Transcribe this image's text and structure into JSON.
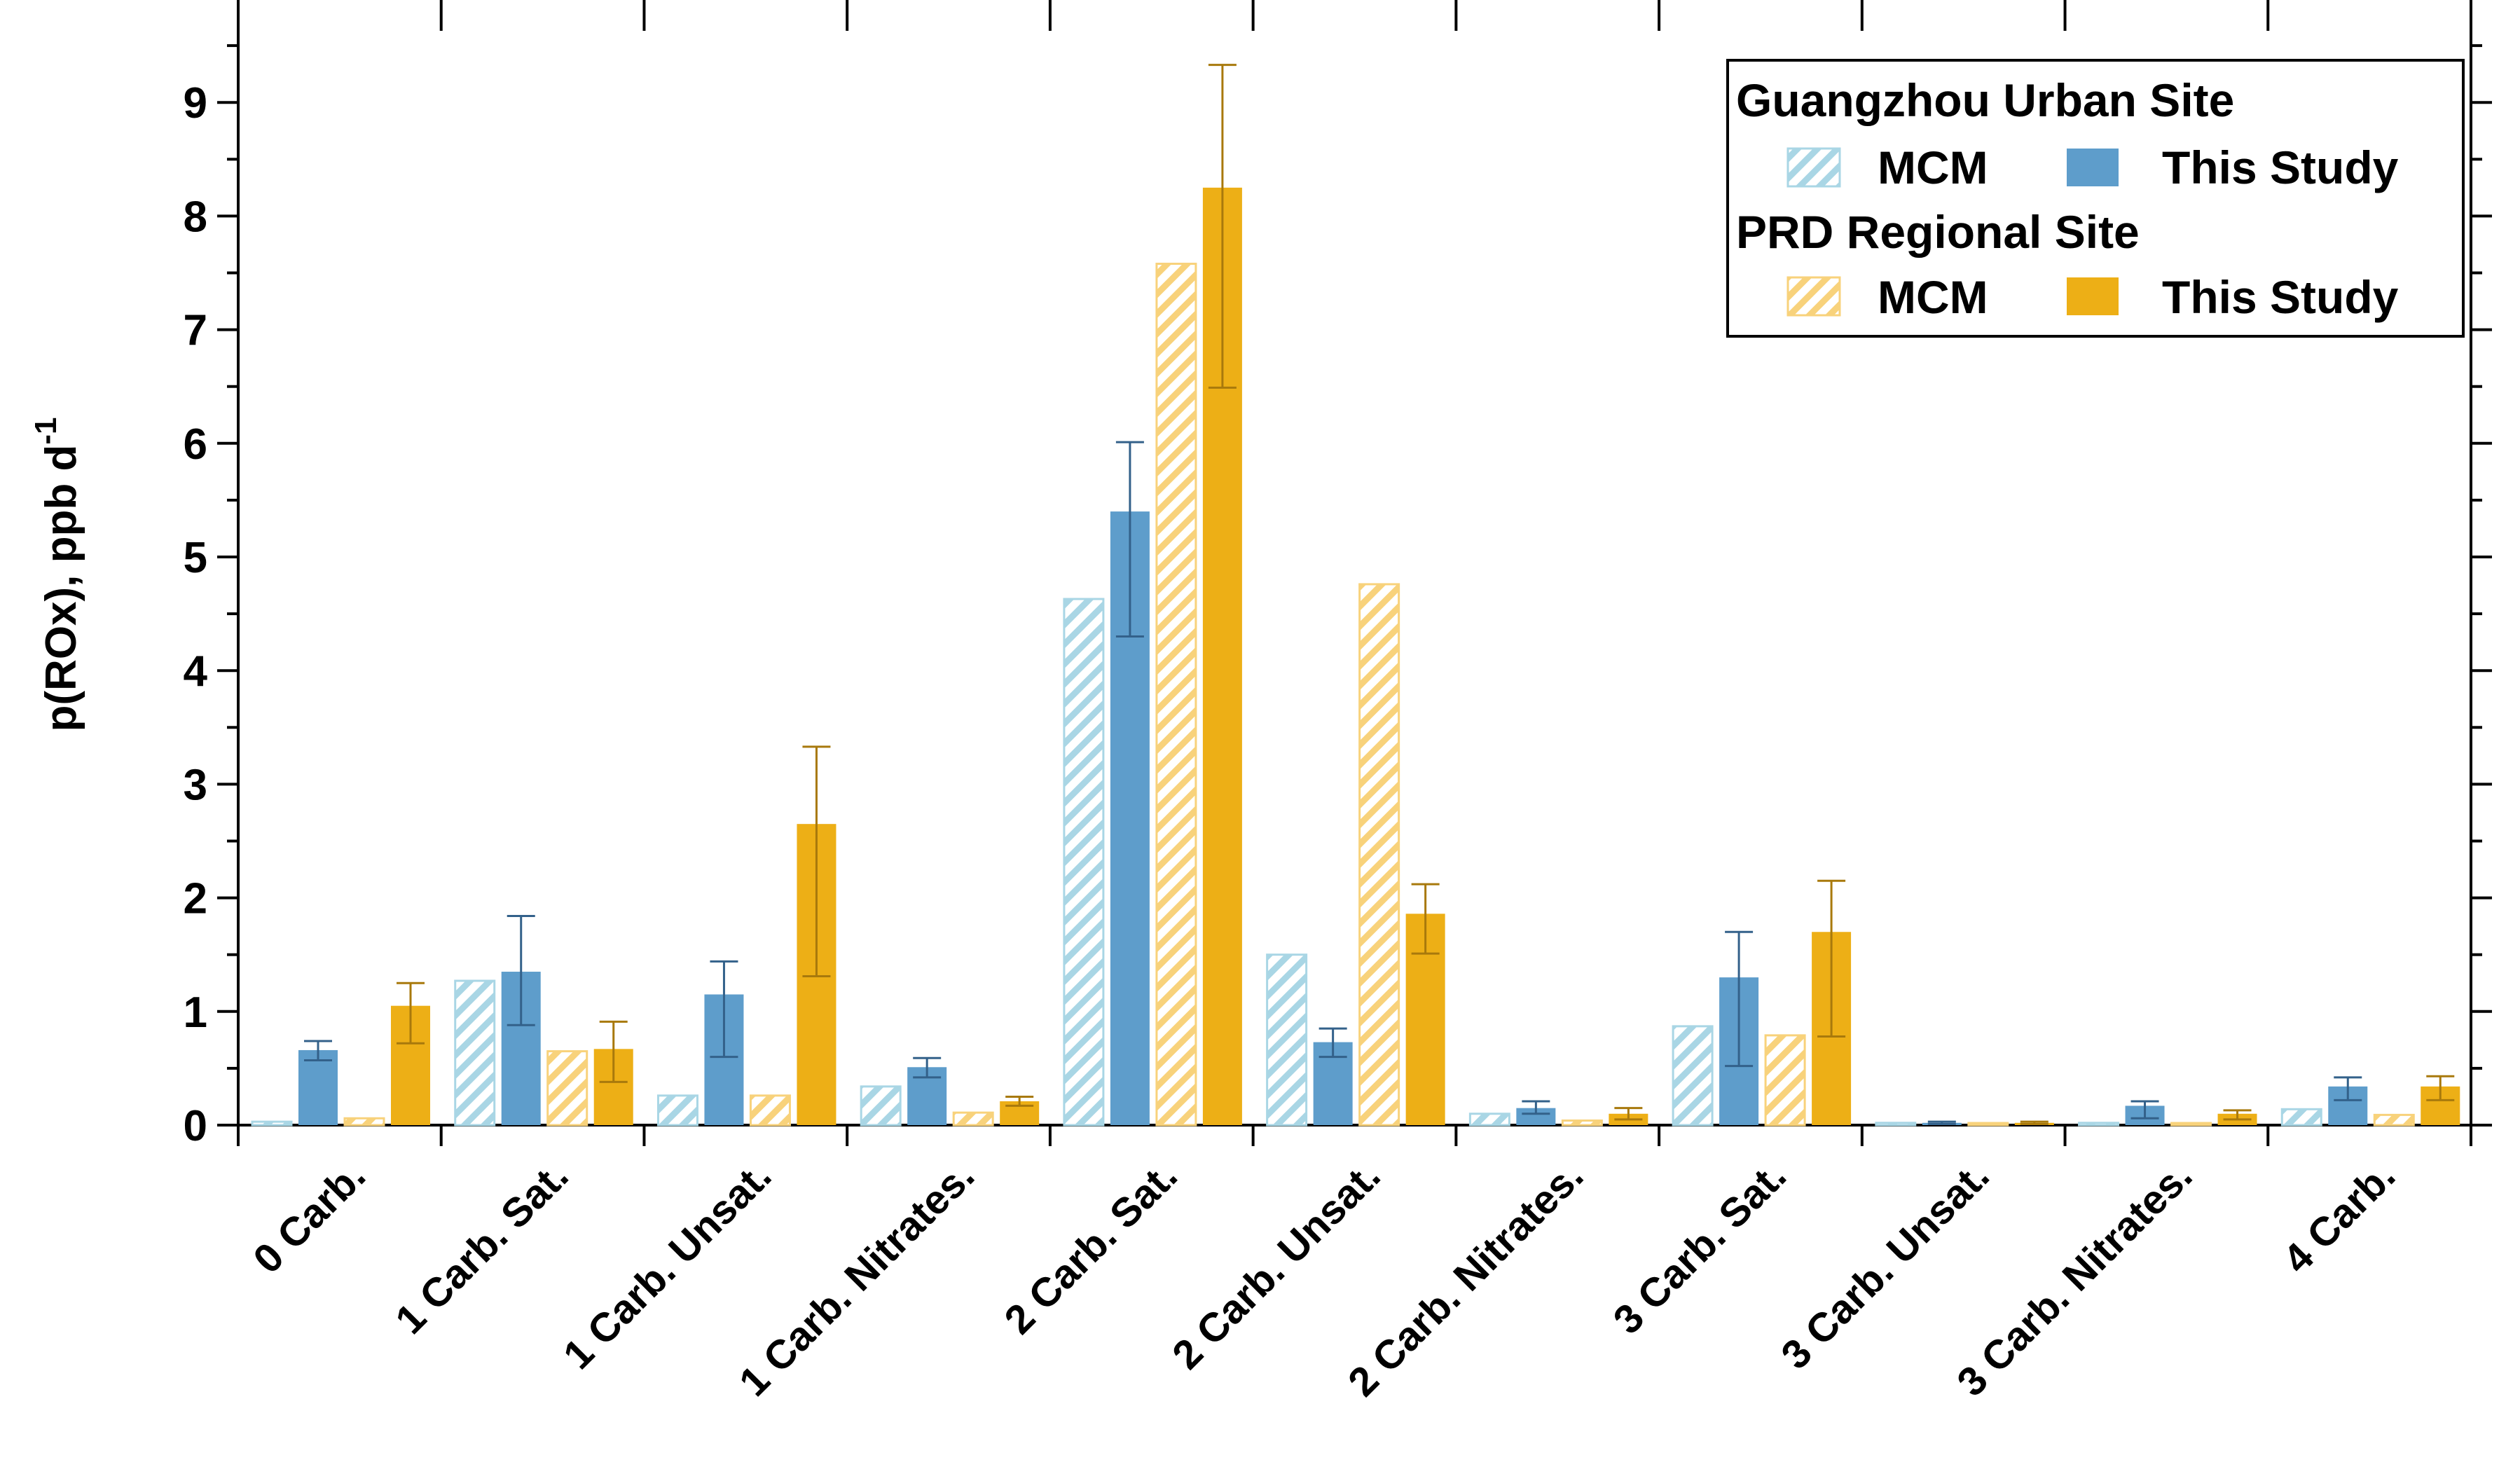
{
  "chart_data": {
    "type": "bar",
    "ylabel": "p(ROx), ppb d",
    "ylabel_sup": "-1",
    "xlabel": "",
    "ylim": [
      0,
      9.5
    ],
    "yticks": [
      "0",
      "1",
      "2",
      "3",
      "4",
      "5",
      "6",
      "7",
      "8",
      "9"
    ],
    "categories": [
      "0 Carb.",
      "1 Carb. Sat.",
      "1 Carb. Unsat.",
      "1 Carb. Nitrates.",
      "2 Carb. Sat.",
      "2 Carb. Unsat.",
      "2 Carb. Nitrates.",
      "3 Carb. Sat.",
      "3 Carb. Unsat.",
      "3 Carb. Nitrates.",
      "4 Carb."
    ],
    "legend": {
      "position": "top-right",
      "groups": [
        {
          "title": "Guangzhou Urban Site",
          "entries": [
            "MCM",
            "This Study"
          ]
        },
        {
          "title": "PRD Regional Site",
          "entries": [
            "MCM",
            "This Study"
          ]
        }
      ]
    },
    "series": [
      {
        "name": "MCM",
        "site": "Guangzhou Urban Site",
        "color": "#a9d6e5",
        "pattern": "hatched",
        "values": [
          0.03,
          1.27,
          0.26,
          0.34,
          4.63,
          1.5,
          0.1,
          0.87,
          0.02,
          0.02,
          0.14
        ]
      },
      {
        "name": "This Study",
        "site": "Guangzhou Urban Site",
        "color": "#5e9dcb",
        "pattern": "solid",
        "values": [
          0.66,
          1.35,
          1.15,
          0.51,
          5.4,
          0.73,
          0.15,
          1.3,
          0.02,
          0.17,
          0.34
        ],
        "error_low": [
          0.57,
          0.88,
          0.6,
          0.42,
          4.3,
          0.6,
          0.1,
          0.52,
          0.01,
          0.06,
          0.22
        ],
        "error_high": [
          0.74,
          1.84,
          1.44,
          0.59,
          6.01,
          0.85,
          0.21,
          1.7,
          0.03,
          0.21,
          0.42
        ]
      },
      {
        "name": "MCM",
        "site": "PRD Regional Site",
        "color": "#f8d27b",
        "pattern": "hatched",
        "values": [
          0.06,
          0.65,
          0.26,
          0.11,
          7.58,
          4.76,
          0.04,
          0.79,
          0.01,
          0.01,
          0.09
        ]
      },
      {
        "name": "This Study",
        "site": "PRD Regional Site",
        "color": "#edaf16",
        "pattern": "solid",
        "values": [
          1.05,
          0.67,
          2.65,
          0.21,
          8.25,
          1.86,
          0.1,
          1.7,
          0.02,
          0.1,
          0.34
        ],
        "error_low": [
          0.72,
          0.38,
          1.31,
          0.17,
          6.49,
          1.51,
          0.05,
          0.78,
          0.01,
          0.05,
          0.22
        ],
        "error_high": [
          1.25,
          0.91,
          3.33,
          0.25,
          9.33,
          2.12,
          0.15,
          2.15,
          0.03,
          0.13,
          0.43
        ]
      }
    ],
    "grid": false
  }
}
